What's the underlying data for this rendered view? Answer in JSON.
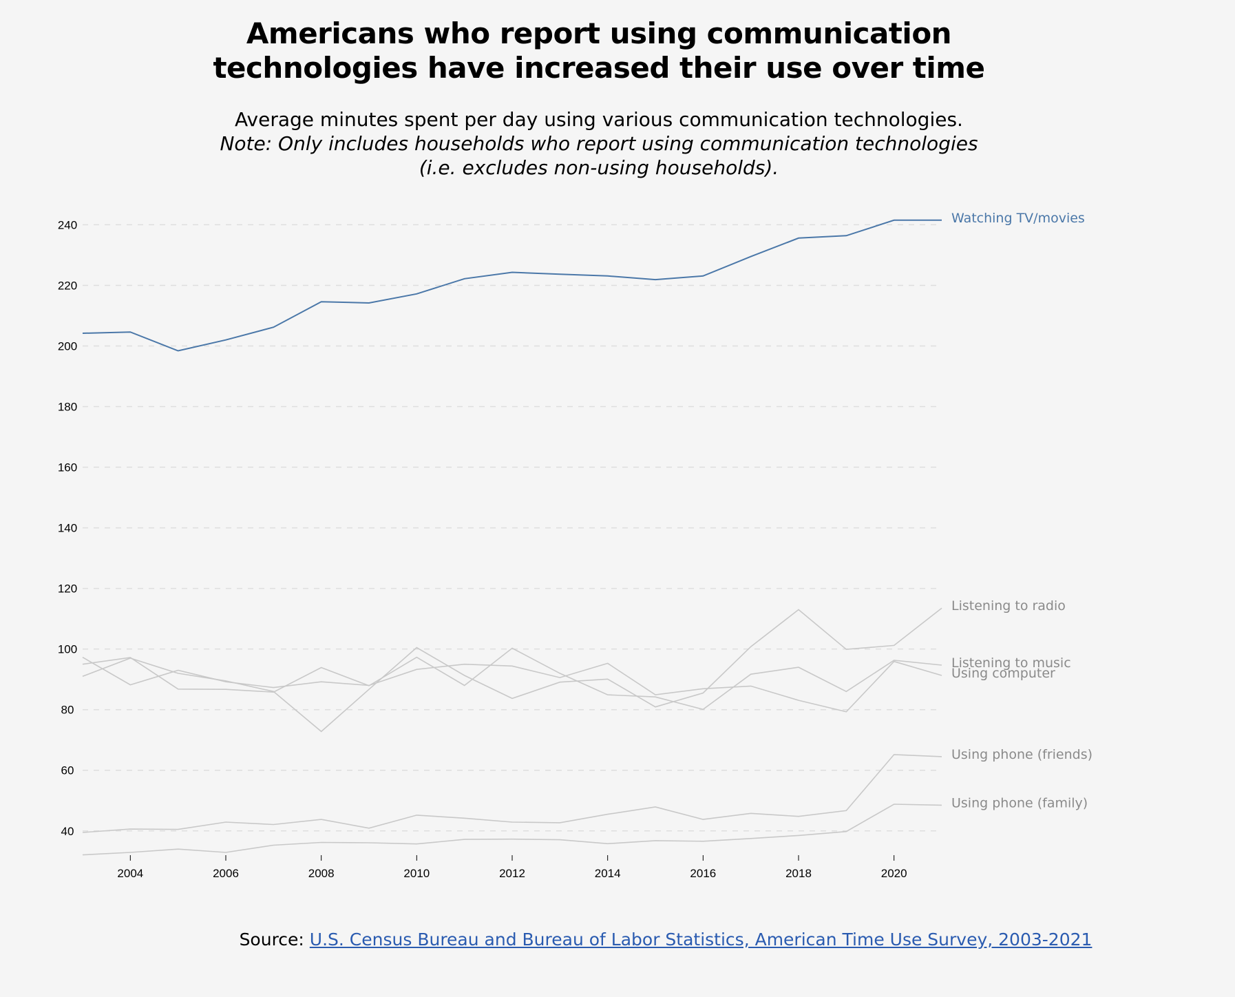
{
  "title_lines": [
    "Americans who report using communication",
    "technologies have increased their use over time"
  ],
  "subtitle": {
    "line1": "Average minutes spent per day using various communication technologies.",
    "line2": "Note: Only includes households who report using communication technologies",
    "line3": "(i.e. excludes non-using households)."
  },
  "source": {
    "prefix": "Source: ",
    "link_text": "U.S. Census Bureau and Bureau of Labor Statistics, American Time Use Survey, 2003-2021"
  },
  "colors": {
    "highlight": "#4a77a8",
    "muted_line": "#c8c8c8",
    "muted_label": "#8a8a8a",
    "grid": "#dedede"
  },
  "chart_data": {
    "type": "line",
    "x": [
      2003,
      2004,
      2005,
      2006,
      2007,
      2008,
      2009,
      2010,
      2011,
      2012,
      2013,
      2014,
      2015,
      2016,
      2017,
      2018,
      2019,
      2020,
      2021
    ],
    "xticks": [
      2004,
      2006,
      2008,
      2010,
      2012,
      2014,
      2016,
      2018,
      2020
    ],
    "yticks": [
      40,
      60,
      80,
      100,
      120,
      140,
      160,
      180,
      200,
      220,
      240
    ],
    "xlim": [
      2003,
      2021
    ],
    "ylim": [
      32,
      246
    ],
    "grid": "horizontal dashed",
    "series": [
      {
        "name": "Watching TV/movies",
        "highlight": true,
        "values": [
          204.2,
          204.6,
          198.4,
          202.0,
          206.2,
          214.6,
          214.2,
          217.2,
          222.2,
          224.3,
          223.7,
          223.1,
          221.9,
          223.1,
          229.5,
          235.6,
          236.4,
          241.5,
          241.5
        ]
      },
      {
        "name": "Listening to radio",
        "highlight": false,
        "values": [
          91.0,
          97.0,
          92.0,
          89.5,
          86.0,
          72.8,
          86.7,
          100.5,
          91.3,
          83.7,
          89.1,
          90.1,
          80.9,
          85.5,
          100.8,
          113.0,
          99.9,
          101.2,
          113.5
        ]
      },
      {
        "name": "Listening to music",
        "highlight": false,
        "values": [
          95.0,
          97.2,
          86.8,
          86.7,
          85.8,
          93.9,
          87.9,
          97.3,
          88.0,
          100.3,
          92.0,
          84.9,
          84.2,
          80.1,
          91.7,
          94.0,
          86.0,
          96.3,
          94.7
        ]
      },
      {
        "name": "Using computer",
        "highlight": false,
        "values": [
          97.3,
          88.2,
          93.0,
          89.2,
          87.3,
          89.2,
          88.0,
          93.3,
          95.0,
          94.4,
          90.6,
          95.3,
          84.9,
          86.9,
          87.8,
          83.1,
          79.3,
          95.9,
          91.3
        ]
      },
      {
        "name": "Using phone (friends)",
        "highlight": false,
        "values": [
          39.5,
          40.6,
          40.5,
          42.9,
          42.1,
          43.8,
          40.9,
          45.2,
          44.2,
          42.9,
          42.7,
          45.5,
          47.9,
          43.8,
          45.8,
          44.8,
          46.7,
          65.2,
          64.5
        ]
      },
      {
        "name": "Using phone (family)",
        "highlight": false,
        "values": [
          32.1,
          32.9,
          34.0,
          32.9,
          35.3,
          36.2,
          36.1,
          35.7,
          37.2,
          37.3,
          37.1,
          35.8,
          36.8,
          36.6,
          37.5,
          38.5,
          39.8,
          48.8,
          48.5
        ]
      }
    ]
  }
}
